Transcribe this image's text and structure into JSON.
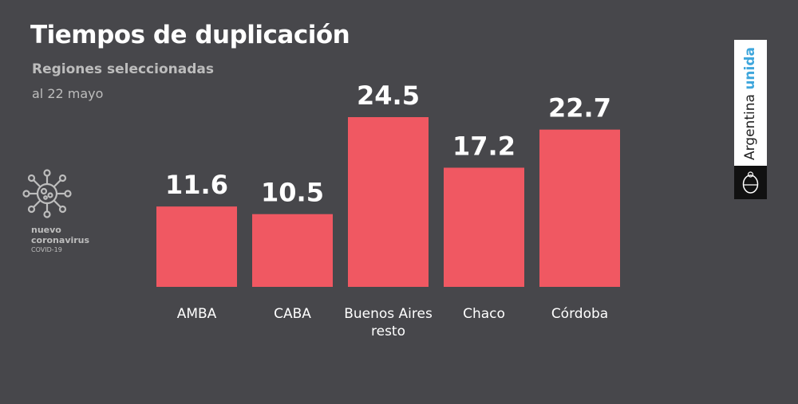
{
  "header": {
    "title": "Tiempos de duplicación",
    "subtitle": "Regiones seleccionadas",
    "date": "al 22 mayo"
  },
  "logo_badge": {
    "line1": "nuevo",
    "line2": "coronavirus",
    "line3": "COVID-19"
  },
  "brand": {
    "text_main": "Argentina ",
    "text_accent": "unida"
  },
  "colors": {
    "bar": "#f05862",
    "background": "#47474b",
    "accent": "#3ea6dc"
  },
  "chart_data": {
    "type": "bar",
    "title": "Tiempos de duplicación",
    "categories": [
      "AMBA",
      "CABA",
      "Buenos Aires resto",
      "Chaco",
      "Córdoba"
    ],
    "category_lines": [
      [
        "AMBA"
      ],
      [
        "CABA"
      ],
      [
        "Buenos Aires",
        "resto"
      ],
      [
        "Chaco"
      ],
      [
        "Córdoba"
      ]
    ],
    "values": [
      11.6,
      10.5,
      24.5,
      17.2,
      22.7
    ],
    "value_labels": [
      "11.6",
      "10.5",
      "24.5",
      "17.2",
      "22.7"
    ],
    "xlabel": "",
    "ylabel": "",
    "ylim": [
      0,
      24.5
    ],
    "grid": false,
    "legend": "none"
  }
}
